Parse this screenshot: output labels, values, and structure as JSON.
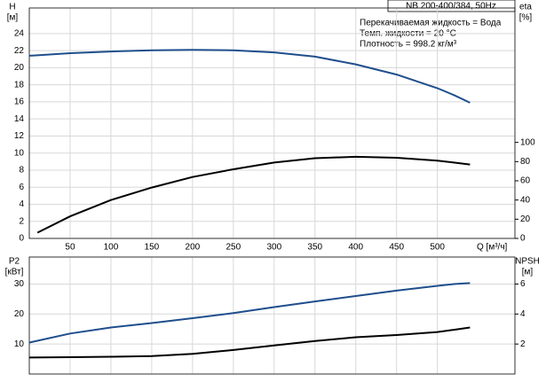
{
  "chart_data": [
    {
      "type": "line",
      "title": "NB 200-400/384, 50Hz",
      "notes": [
        "Перекачиваемая жидкость = Вода",
        "Темп. жидкости = 20 °C",
        "Плотность = 998.2 кг/м³"
      ],
      "x_label": "Q [м³/ч]",
      "y_label": "H",
      "y_unit": "[м]",
      "y2_label": "eta",
      "y2_unit": "[%]",
      "x": [
        0,
        10,
        50,
        100,
        150,
        200,
        250,
        300,
        350,
        400,
        450,
        500,
        520,
        540
      ],
      "xlim": [
        0,
        595
      ],
      "xticks": [
        50,
        100,
        150,
        200,
        250,
        300,
        350,
        400,
        450,
        500
      ],
      "ylim": [
        0,
        27
      ],
      "yticks": [
        0,
        2,
        4,
        6,
        8,
        10,
        12,
        14,
        16,
        18,
        20,
        22,
        24
      ],
      "y2lim": [
        0,
        240
      ],
      "y2ticks": [
        0,
        20,
        40,
        60,
        80,
        100
      ],
      "grid": true,
      "series": [
        {
          "name": "H",
          "color": "#1f4e8c",
          "values": [
            21.4,
            21.45,
            21.7,
            21.9,
            22.05,
            22.1,
            22.05,
            21.8,
            21.3,
            20.4,
            19.2,
            17.6,
            16.8,
            15.9
          ]
        },
        {
          "name": "eta",
          "color": "#000000",
          "axis": "y2",
          "values": [
            null,
            6,
            23,
            40,
            53,
            64,
            72,
            79,
            83.5,
            85,
            84,
            81,
            79,
            77
          ]
        }
      ]
    },
    {
      "type": "line",
      "y_label": "P2",
      "y_unit": "[кВт]",
      "y2_label": "NPSH",
      "y2_unit": "[м]",
      "x": [
        0,
        50,
        100,
        150,
        200,
        250,
        300,
        350,
        400,
        450,
        500,
        520,
        540
      ],
      "xlim": [
        0,
        595
      ],
      "ylim": [
        0,
        39
      ],
      "yticks": [
        10,
        20,
        30
      ],
      "y2lim": [
        0,
        7.8
      ],
      "y2ticks": [
        2,
        4,
        6
      ],
      "grid": true,
      "series": [
        {
          "name": "P2",
          "color": "#1f4e8c",
          "values": [
            10.5,
            13.5,
            15.5,
            17,
            18.6,
            20.3,
            22.3,
            24.2,
            26,
            27.8,
            29.4,
            30,
            30.3
          ]
        },
        {
          "name": "NPSH",
          "color": "#000000",
          "axis": "y2",
          "values": [
            1.1,
            1.12,
            1.15,
            1.2,
            1.35,
            1.6,
            1.9,
            2.2,
            2.45,
            2.6,
            2.8,
            2.95,
            3.1
          ]
        }
      ]
    }
  ]
}
